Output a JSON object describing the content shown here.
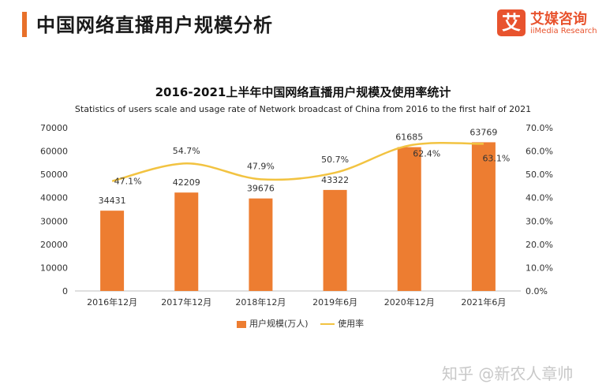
{
  "header": {
    "title": "中国网络直播用户规模分析",
    "logo_mark": "艾",
    "logo_cn": "艾媒咨询",
    "logo_en": "iiMedia Research"
  },
  "watermark": "知乎 @新农人章帅",
  "chart_data": {
    "type": "bar",
    "title": "2016-2021上半年中国网络直播用户规模及使用率统计",
    "subtitle": "Statistics of users scale and usage rate of Network broadcast of China from 2016 to the first half of 2021",
    "categories": [
      "2016年12月",
      "2017年12月",
      "2018年12月",
      "2019年6月",
      "2020年12月",
      "2021年6月"
    ],
    "series": [
      {
        "name": "用户规模(万人)",
        "type": "bar",
        "axis": "left",
        "color": "#ed7d31",
        "values": [
          34431,
          42209,
          39676,
          43322,
          61685,
          63769
        ],
        "labels": [
          "34431",
          "42209",
          "39676",
          "43322",
          "61685",
          "63769"
        ]
      },
      {
        "name": "使用率",
        "type": "line",
        "axis": "right",
        "color": "#f2c341",
        "values": [
          47.1,
          54.7,
          47.9,
          50.7,
          62.4,
          63.1
        ],
        "labels": [
          "47.1%",
          "54.7%",
          "47.9%",
          "50.7%",
          "62.4%",
          "63.1%"
        ]
      }
    ],
    "y_left": {
      "min": 0,
      "max": 70000,
      "ticks": [
        "0",
        "10000",
        "20000",
        "30000",
        "40000",
        "50000",
        "60000",
        "70000"
      ]
    },
    "y_right": {
      "min": 0,
      "max": 70,
      "ticks": [
        "0.0%",
        "10.0%",
        "20.0%",
        "30.0%",
        "40.0%",
        "50.0%",
        "60.0%",
        "70.0%"
      ]
    },
    "grid": false,
    "legend_position": "bottom-center"
  }
}
